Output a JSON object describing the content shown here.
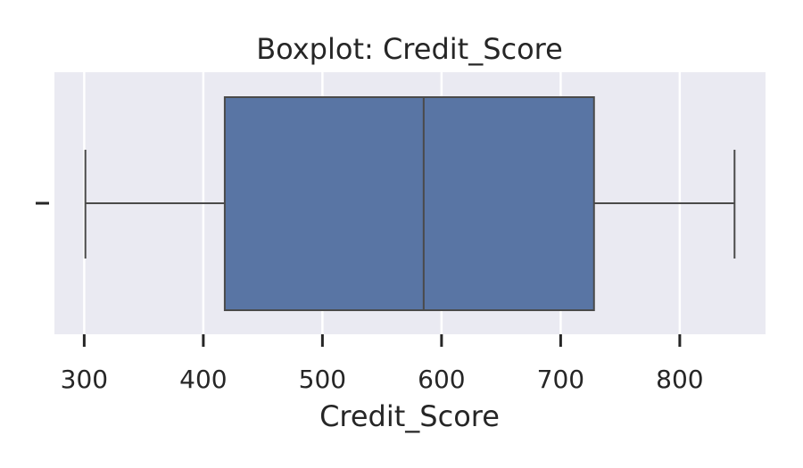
{
  "chart_data": {
    "type": "boxplot",
    "title": "Boxplot: Credit_Score",
    "xlabel": "Credit_Score",
    "ylabel": "",
    "xlim": [
      275,
      872
    ],
    "xticks": [
      300,
      400,
      500,
      600,
      700,
      800
    ],
    "xtick_labels": [
      "300",
      "400",
      "500",
      "600",
      "700",
      "800"
    ],
    "grid": true,
    "orientation": "horizontal",
    "box": {
      "whisker_low": 301,
      "q1": 418,
      "median": 585,
      "q3": 728,
      "whisker_high": 846
    },
    "colors": {
      "box_fill": "#5975a4",
      "line": "#4a4a4a",
      "plot_bg": "#eaeaf2",
      "grid": "#ffffff",
      "text": "#262626"
    }
  }
}
